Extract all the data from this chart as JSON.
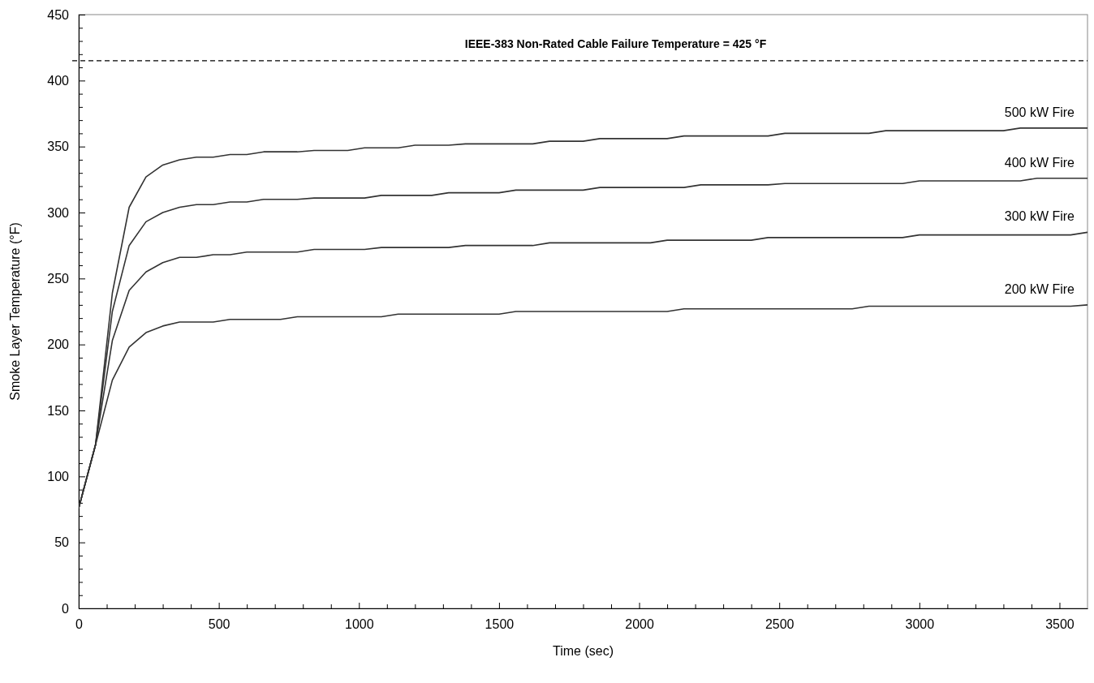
{
  "chart_data": {
    "type": "line",
    "xlabel": "Time (sec)",
    "ylabel": "Smoke Layer Temperature (°F)",
    "xlim": [
      0,
      3600
    ],
    "ylim": [
      0,
      450
    ],
    "xticks": [
      0,
      {
        "value": 100,
        "label": null
      },
      {
        "value": 200,
        "label": null
      },
      {
        "value": 300,
        "label": null
      },
      {
        "value": 400,
        "label": null
      },
      500,
      {
        "value": 600,
        "label": null
      },
      {
        "value": 700,
        "label": null
      },
      {
        "value": 800,
        "label": null
      },
      {
        "value": 900,
        "label": null
      },
      1000,
      {
        "value": 1100,
        "label": null
      },
      {
        "value": 1200,
        "label": null
      },
      {
        "value": 1300,
        "label": null
      },
      {
        "value": 1400,
        "label": null
      },
      1500,
      {
        "value": 1600,
        "label": null
      },
      {
        "value": 1700,
        "label": null
      },
      {
        "value": 1800,
        "label": null
      },
      {
        "value": 1900,
        "label": null
      },
      2000,
      {
        "value": 2100,
        "label": null
      },
      {
        "value": 2200,
        "label": null
      },
      {
        "value": 2300,
        "label": null
      },
      {
        "value": 2400,
        "label": null
      },
      2500,
      {
        "value": 2600,
        "label": null
      },
      {
        "value": 2700,
        "label": null
      },
      {
        "value": 2800,
        "label": null
      },
      {
        "value": 2900,
        "label": null
      },
      3000,
      {
        "value": 3100,
        "label": null
      },
      {
        "value": 3200,
        "label": null
      },
      {
        "value": 3300,
        "label": null
      },
      {
        "value": 3400,
        "label": null
      },
      3500
    ],
    "yticks": [
      0,
      {
        "value": 10,
        "label": null
      },
      {
        "value": 20,
        "label": null
      },
      {
        "value": 30,
        "label": null
      },
      {
        "value": 40,
        "label": null
      },
      50,
      {
        "value": 60,
        "label": null
      },
      {
        "value": 70,
        "label": null
      },
      {
        "value": 80,
        "label": null
      },
      {
        "value": 90,
        "label": null
      },
      100,
      {
        "value": 110,
        "label": null
      },
      {
        "value": 120,
        "label": null
      },
      {
        "value": 130,
        "label": null
      },
      {
        "value": 140,
        "label": null
      },
      150,
      {
        "value": 160,
        "label": null
      },
      {
        "value": 170,
        "label": null
      },
      {
        "value": 180,
        "label": null
      },
      {
        "value": 190,
        "label": null
      },
      200,
      {
        "value": 210,
        "label": null
      },
      {
        "value": 220,
        "label": null
      },
      {
        "value": 230,
        "label": null
      },
      {
        "value": 240,
        "label": null
      },
      250,
      {
        "value": 260,
        "label": null
      },
      {
        "value": 270,
        "label": null
      },
      {
        "value": 280,
        "label": null
      },
      {
        "value": 290,
        "label": null
      },
      300,
      {
        "value": 310,
        "label": null
      },
      {
        "value": 320,
        "label": null
      },
      {
        "value": 330,
        "label": null
      },
      {
        "value": 340,
        "label": null
      },
      350,
      {
        "value": 360,
        "label": null
      },
      {
        "value": 370,
        "label": null
      },
      {
        "value": 380,
        "label": null
      },
      {
        "value": 390,
        "label": null
      },
      400,
      {
        "value": 410,
        "label": null
      },
      {
        "value": 420,
        "label": null
      },
      {
        "value": 430,
        "label": null
      },
      {
        "value": 440,
        "label": null
      },
      450
    ],
    "annotations": [
      "IEEE-383 Non-Rated Cable Failure Temperature = 425 °F"
    ],
    "ref_lines": [
      {
        "axis": "y",
        "value": 415,
        "line_style": "dashed",
        "color": "#000000"
      }
    ],
    "series": [
      {
        "name": "500 kW Fire",
        "color": "#333333",
        "x": [
          0,
          60,
          120,
          180,
          240,
          300,
          360,
          420,
          480,
          540,
          600,
          660,
          780,
          840,
          960,
          1020,
          1140,
          1200,
          1320,
          1380,
          1620,
          1680,
          1800,
          1860,
          2100,
          2160,
          2460,
          2520,
          2820,
          2880,
          3300,
          3360,
          3600
        ],
        "values": [
          76,
          124,
          239,
          304,
          327,
          336,
          340,
          342,
          342,
          344,
          344,
          346,
          346,
          347,
          347,
          349,
          349,
          351,
          351,
          352,
          352,
          354,
          354,
          356,
          356,
          358,
          358,
          360,
          360,
          362,
          362,
          364,
          364
        ]
      },
      {
        "name": "400 kW Fire",
        "color": "#333333",
        "x": [
          0,
          60,
          120,
          180,
          240,
          300,
          360,
          420,
          480,
          540,
          600,
          660,
          780,
          840,
          1020,
          1080,
          1260,
          1320,
          1500,
          1560,
          1800,
          1860,
          2160,
          2220,
          2460,
          2520,
          2940,
          3000,
          3360,
          3420,
          3600
        ],
        "values": [
          76,
          124,
          225,
          275,
          293,
          300,
          304,
          306,
          306,
          308,
          308,
          310,
          310,
          311,
          311,
          313,
          313,
          315,
          315,
          317,
          317,
          319,
          319,
          321,
          321,
          322,
          322,
          324,
          324,
          326,
          326
        ]
      },
      {
        "name": "300 kW Fire",
        "color": "#333333",
        "x": [
          0,
          60,
          120,
          180,
          240,
          300,
          360,
          420,
          480,
          540,
          600,
          780,
          840,
          1020,
          1080,
          1320,
          1380,
          1620,
          1680,
          2040,
          2100,
          2400,
          2460,
          2940,
          3000,
          3540,
          3600
        ],
        "values": [
          76,
          124,
          203,
          241,
          255,
          262,
          266,
          266,
          268,
          268,
          270,
          270,
          272,
          272,
          273.5,
          273.5,
          275,
          275,
          277,
          277,
          279,
          279,
          281,
          281,
          283,
          283,
          285
        ]
      },
      {
        "name": "200 kW Fire",
        "color": "#333333",
        "x": [
          0,
          60,
          120,
          180,
          240,
          300,
          360,
          480,
          540,
          720,
          780,
          1080,
          1140,
          1500,
          1560,
          2100,
          2160,
          2760,
          2820,
          3540,
          3600
        ],
        "values": [
          76,
          124,
          173,
          198,
          209,
          214,
          217,
          217,
          219,
          219,
          221,
          221,
          223,
          223,
          225,
          225,
          227,
          227,
          229,
          229,
          230
        ]
      }
    ]
  }
}
